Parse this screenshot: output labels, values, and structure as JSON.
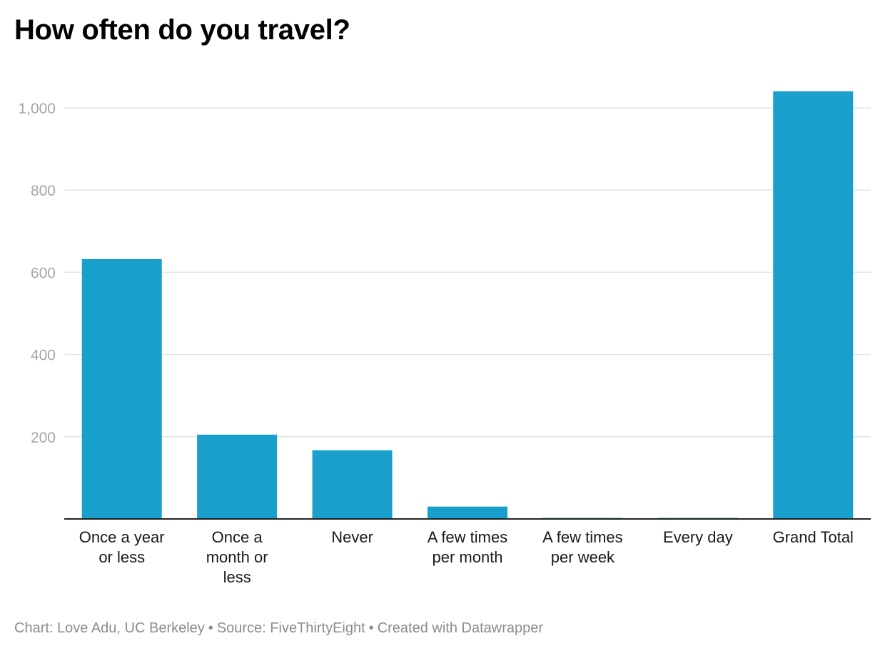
{
  "title": "How often do you travel?",
  "footer": {
    "credit": "Chart: Love Adu, UC Berkeley",
    "source": "Source: FiveThirtyEight",
    "tool": "Created with Datawrapper",
    "separator": "•"
  },
  "colors": {
    "bar": "#189fcc",
    "grid": "#e3e3e3",
    "axis": "#222222",
    "tick_label": "#a6a6a6",
    "category_label": "#1a1a1a"
  },
  "chart_data": {
    "type": "bar",
    "title": "How often do you travel?",
    "xlabel": "",
    "ylabel": "",
    "ylim": [
      0,
      1080
    ],
    "grid": true,
    "yticks": [
      200,
      400,
      600,
      800,
      1000
    ],
    "ytick_labels": [
      "200",
      "400",
      "600",
      "800",
      "1,000"
    ],
    "categories": [
      [
        "Once a year",
        "or less"
      ],
      [
        "Once a",
        "month or",
        "less"
      ],
      [
        "Never"
      ],
      [
        "A few times",
        "per month"
      ],
      [
        "A few times",
        "per week"
      ],
      [
        "Every day"
      ],
      [
        "Grand Total"
      ]
    ],
    "values": [
      632,
      205,
      167,
      30,
      2,
      2,
      1040
    ]
  }
}
